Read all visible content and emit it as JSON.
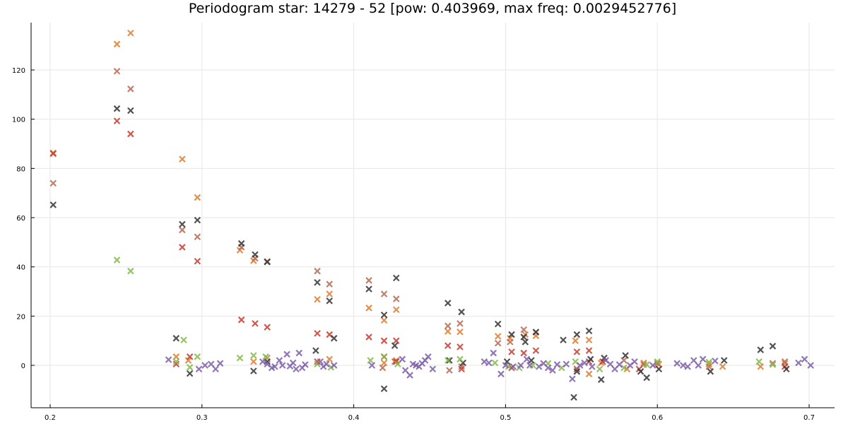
{
  "chart_data": {
    "type": "scatter",
    "title": "Periodogram star: 14279 - 52 [pow: 0.403969, max freq: 0.0029452776]",
    "xlabel": "",
    "ylabel": "",
    "xlim": [
      0.19,
      0.71
    ],
    "ylim": [
      -17,
      139
    ],
    "x_ticks": [
      "0.2",
      "0.3",
      "0.4",
      "0.5",
      "0.6",
      "0.7"
    ],
    "y_ticks": [
      "0",
      "20",
      "40",
      "60",
      "80",
      "100",
      "120"
    ],
    "grid": true,
    "legend": "none",
    "marker": "x",
    "series": [
      {
        "color": "#e07b2e",
        "points": [
          [
            0.202,
            86.3
          ],
          [
            0.244,
            130.5
          ],
          [
            0.253,
            135.0
          ],
          [
            0.287,
            83.8
          ],
          [
            0.297,
            68.2
          ],
          [
            0.325,
            46.8
          ],
          [
            0.334,
            42.5
          ],
          [
            0.376,
            26.8
          ],
          [
            0.384,
            29.0
          ],
          [
            0.41,
            23.3
          ],
          [
            0.42,
            18.3
          ],
          [
            0.428,
            22.6
          ],
          [
            0.462,
            13.8
          ],
          [
            0.47,
            13.6
          ],
          [
            0.495,
            11.8
          ],
          [
            0.503,
            11.0
          ],
          [
            0.513,
            12.5
          ],
          [
            0.52,
            12.0
          ],
          [
            0.546,
            10.0
          ],
          [
            0.555,
            10.3
          ],
          [
            0.283,
            3.5
          ],
          [
            0.291,
            2.0
          ],
          [
            0.334,
            1.5
          ],
          [
            0.343,
            3.0
          ],
          [
            0.384,
            2.5
          ],
          [
            0.42,
            1.0
          ],
          [
            0.428,
            2.0
          ],
          [
            0.555,
            -3.5
          ],
          [
            0.563,
            1.0
          ],
          [
            0.58,
            -1.5
          ],
          [
            0.591,
            1.0
          ],
          [
            0.601,
            0.5
          ],
          [
            0.634,
            0.5
          ],
          [
            0.643,
            -0.5
          ],
          [
            0.668,
            -0.5
          ],
          [
            0.684,
            0.8
          ]
        ]
      },
      {
        "color": "#b56a52",
        "points": [
          [
            0.202,
            74.0
          ],
          [
            0.244,
            119.5
          ],
          [
            0.253,
            112.3
          ],
          [
            0.287,
            55.0
          ],
          [
            0.297,
            52.2
          ],
          [
            0.326,
            48.0
          ],
          [
            0.335,
            43.5
          ],
          [
            0.343,
            42.2
          ],
          [
            0.376,
            38.3
          ],
          [
            0.384,
            33.0
          ],
          [
            0.41,
            34.5
          ],
          [
            0.42,
            29.0
          ],
          [
            0.428,
            27.0
          ],
          [
            0.462,
            16.0
          ],
          [
            0.47,
            17.0
          ],
          [
            0.495,
            9.0
          ],
          [
            0.503,
            9.5
          ],
          [
            0.512,
            14.5
          ],
          [
            0.52,
            13.5
          ],
          [
            0.419,
            -1.0
          ],
          [
            0.427,
            1.5
          ],
          [
            0.463,
            -2.0
          ],
          [
            0.471,
            -0.5
          ],
          [
            0.578,
            2.0
          ],
          [
            0.591,
            0.3
          ],
          [
            0.6,
            0.8
          ],
          [
            0.634,
            -0.5
          ],
          [
            0.676,
            0.8
          ],
          [
            0.684,
            1.5
          ]
        ]
      },
      {
        "color": "#c43c30",
        "points": [
          [
            0.202,
            86.0
          ],
          [
            0.244,
            99.3
          ],
          [
            0.253,
            94.0
          ],
          [
            0.287,
            48.0
          ],
          [
            0.297,
            42.3
          ],
          [
            0.326,
            18.5
          ],
          [
            0.335,
            17.0
          ],
          [
            0.343,
            15.5
          ],
          [
            0.376,
            13.0
          ],
          [
            0.384,
            12.5
          ],
          [
            0.41,
            11.5
          ],
          [
            0.42,
            10.0
          ],
          [
            0.428,
            10.0
          ],
          [
            0.462,
            8.0
          ],
          [
            0.47,
            7.5
          ],
          [
            0.504,
            5.5
          ],
          [
            0.512,
            5.0
          ],
          [
            0.52,
            6.0
          ],
          [
            0.547,
            5.5
          ],
          [
            0.555,
            6.0
          ],
          [
            0.283,
            0.5
          ],
          [
            0.292,
            3.5
          ],
          [
            0.376,
            1.5
          ],
          [
            0.42,
            3.5
          ],
          [
            0.428,
            1.5
          ],
          [
            0.471,
            -1.5
          ],
          [
            0.504,
            -1.0
          ],
          [
            0.547,
            -1.5
          ],
          [
            0.555,
            1.5
          ],
          [
            0.564,
            1.5
          ],
          [
            0.588,
            -1.5
          ],
          [
            0.684,
            -0.5
          ]
        ]
      },
      {
        "color": "#333333",
        "points": [
          [
            0.202,
            65.2
          ],
          [
            0.244,
            104.3
          ],
          [
            0.253,
            103.5
          ],
          [
            0.287,
            57.3
          ],
          [
            0.297,
            59.0
          ],
          [
            0.326,
            49.5
          ],
          [
            0.335,
            45.0
          ],
          [
            0.343,
            42.0
          ],
          [
            0.376,
            33.7
          ],
          [
            0.384,
            26.2
          ],
          [
            0.41,
            31.0
          ],
          [
            0.42,
            20.5
          ],
          [
            0.428,
            35.5
          ],
          [
            0.462,
            25.3
          ],
          [
            0.471,
            21.7
          ],
          [
            0.495,
            16.8
          ],
          [
            0.504,
            12.5
          ],
          [
            0.512,
            11.5
          ],
          [
            0.52,
            13.5
          ],
          [
            0.283,
            11.0
          ],
          [
            0.292,
            -3.3
          ],
          [
            0.334,
            -2.3
          ],
          [
            0.343,
            1.5
          ],
          [
            0.375,
            6.0
          ],
          [
            0.387,
            11.0
          ],
          [
            0.42,
            -9.5
          ],
          [
            0.427,
            8.0
          ],
          [
            0.463,
            2.0
          ],
          [
            0.472,
            1.0
          ],
          [
            0.501,
            1.5
          ],
          [
            0.513,
            9.5
          ],
          [
            0.517,
            2.0
          ],
          [
            0.538,
            10.3
          ],
          [
            0.547,
            12.5
          ],
          [
            0.555,
            14.0
          ],
          [
            0.545,
            -13.0
          ],
          [
            0.547,
            -2.5
          ],
          [
            0.556,
            2.5
          ],
          [
            0.563,
            -5.8
          ],
          [
            0.565,
            3.0
          ],
          [
            0.579,
            4.0
          ],
          [
            0.589,
            -2.5
          ],
          [
            0.593,
            -5.0
          ],
          [
            0.601,
            -1.5
          ],
          [
            0.635,
            -2.5
          ],
          [
            0.644,
            2.0
          ],
          [
            0.668,
            6.3
          ],
          [
            0.676,
            7.8
          ],
          [
            0.685,
            -1.5
          ]
        ]
      },
      {
        "color": "#85b94c",
        "points": [
          [
            0.244,
            42.8
          ],
          [
            0.253,
            38.3
          ],
          [
            0.288,
            10.3
          ],
          [
            0.283,
            1.5
          ],
          [
            0.292,
            -0.8
          ],
          [
            0.297,
            3.5
          ],
          [
            0.325,
            3.0
          ],
          [
            0.334,
            4.0
          ],
          [
            0.342,
            3.5
          ],
          [
            0.376,
            0.5
          ],
          [
            0.385,
            -0.8
          ],
          [
            0.411,
            2.0
          ],
          [
            0.42,
            3.5
          ],
          [
            0.429,
            0.5
          ],
          [
            0.462,
            2.0
          ],
          [
            0.47,
            2.5
          ],
          [
            0.493,
            1.0
          ],
          [
            0.502,
            -0.5
          ],
          [
            0.509,
            -1.0
          ],
          [
            0.518,
            0.0
          ],
          [
            0.528,
            0.8
          ],
          [
            0.537,
            -1.0
          ],
          [
            0.546,
            1.5
          ],
          [
            0.562,
            -1.5
          ],
          [
            0.578,
            -1.0
          ],
          [
            0.593,
            0.3
          ],
          [
            0.6,
            1.5
          ],
          [
            0.634,
            1.3
          ],
          [
            0.667,
            1.5
          ],
          [
            0.676,
            0.3
          ]
        ]
      },
      {
        "color": "#7d5ea8",
        "points": [
          [
            0.278,
            2.3
          ],
          [
            0.298,
            -1.5
          ],
          [
            0.302,
            0.0
          ],
          [
            0.306,
            0.5
          ],
          [
            0.309,
            -1.5
          ],
          [
            0.312,
            0.8
          ],
          [
            0.34,
            1.5
          ],
          [
            0.343,
            0.5
          ],
          [
            0.346,
            -1.0
          ],
          [
            0.348,
            -0.5
          ],
          [
            0.351,
            2.0
          ],
          [
            0.353,
            0.0
          ],
          [
            0.356,
            4.5
          ],
          [
            0.358,
            -0.3
          ],
          [
            0.36,
            1.0
          ],
          [
            0.362,
            -1.5
          ],
          [
            0.364,
            5.0
          ],
          [
            0.366,
            -1.0
          ],
          [
            0.368,
            0.3
          ],
          [
            0.378,
            1.5
          ],
          [
            0.38,
            -0.5
          ],
          [
            0.382,
            0.5
          ],
          [
            0.387,
            0.0
          ],
          [
            0.412,
            0.0
          ],
          [
            0.432,
            2.5
          ],
          [
            0.434,
            -2.0
          ],
          [
            0.437,
            -4.0
          ],
          [
            0.439,
            0.5
          ],
          [
            0.441,
            0.0
          ],
          [
            0.443,
            -0.5
          ],
          [
            0.445,
            0.8
          ],
          [
            0.447,
            2.0
          ],
          [
            0.449,
            3.5
          ],
          [
            0.452,
            -1.5
          ],
          [
            0.486,
            1.5
          ],
          [
            0.489,
            1.0
          ],
          [
            0.492,
            5.0
          ],
          [
            0.497,
            -3.5
          ],
          [
            0.5,
            0.0
          ],
          [
            0.505,
            -0.5
          ],
          [
            0.51,
            0.0
          ],
          [
            0.514,
            2.5
          ],
          [
            0.516,
            0.0
          ],
          [
            0.522,
            -0.5
          ],
          [
            0.525,
            0.8
          ],
          [
            0.528,
            -1.0
          ],
          [
            0.531,
            -2.0
          ],
          [
            0.534,
            0.3
          ],
          [
            0.54,
            0.5
          ],
          [
            0.544,
            -5.5
          ],
          [
            0.549,
            0.0
          ],
          [
            0.552,
            1.0
          ],
          [
            0.557,
            -0.5
          ],
          [
            0.566,
            2.0
          ],
          [
            0.569,
            0.5
          ],
          [
            0.572,
            -1.5
          ],
          [
            0.575,
            0.3
          ],
          [
            0.582,
            0.0
          ],
          [
            0.585,
            1.5
          ],
          [
            0.597,
            0.0
          ],
          [
            0.613,
            0.8
          ],
          [
            0.617,
            0.0
          ],
          [
            0.62,
            -0.5
          ],
          [
            0.624,
            2.0
          ],
          [
            0.627,
            0.0
          ],
          [
            0.63,
            2.5
          ],
          [
            0.638,
            1.8
          ],
          [
            0.693,
            1.0
          ],
          [
            0.697,
            2.5
          ],
          [
            0.701,
            0.0
          ]
        ]
      }
    ]
  }
}
